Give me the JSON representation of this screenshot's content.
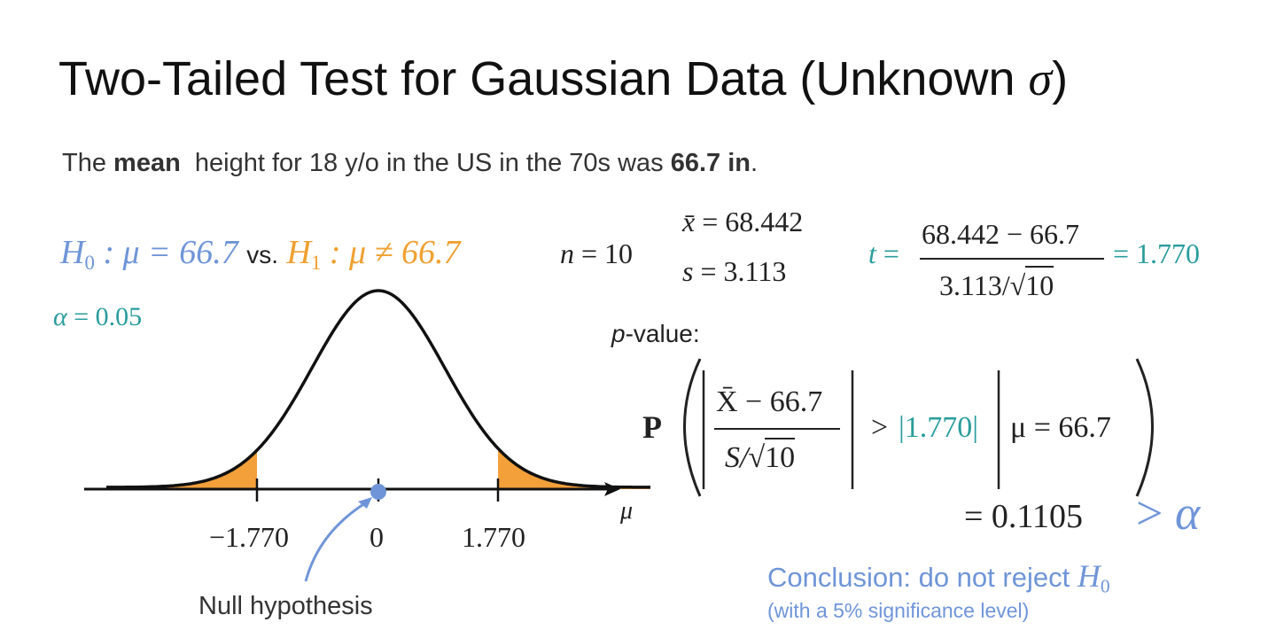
{
  "title": [
    "Two-Tailed Test for Gaussian Data (Unknown ",
    "σ",
    ")"
  ],
  "intro": [
    "The ",
    "mean",
    "  height for 18 y/o in the US in the 70s was ",
    "66.7 in",
    "."
  ],
  "hypotheses": {
    "h0": {
      "symbol": "H",
      "sub": "0",
      "rest": " : μ = 66.7"
    },
    "vs": "vs.",
    "h1": {
      "symbol": "H",
      "sub": "1",
      "rest": " : μ ≠ 66.7"
    }
  },
  "n": {
    "var": "n",
    "rest": " = 10"
  },
  "alpha": {
    "var": "α",
    "rest": " = 0.05"
  },
  "xbar": {
    "var": "x̄",
    "rest": " = 68.442"
  },
  "s": {
    "var": "s",
    "rest": " = 3.113"
  },
  "t": {
    "var": "t",
    "eq": " =",
    "numerator": "68.442 − 66.7",
    "denominator": "3.113/√",
    "sqrt": "10",
    "result": "= 1.770"
  },
  "pvalue": {
    "label_var": "p",
    "label_rest": "-value:",
    "P": "P",
    "numerator": "X̄ − 66.7",
    "denominator": "S/√",
    "sqrt": "10",
    "gt": ">",
    "tval": "|1.770|",
    "condition": "μ = 66.7",
    "result": "= 0.1105",
    "compare": [
      "> ",
      "α"
    ]
  },
  "plot": {
    "ticks": [
      "−1.770",
      "0",
      "1.770"
    ],
    "axis_label": "μ",
    "annotation": "Null hypothesis"
  },
  "conclusion": {
    "text": "Conclusion: do not reject ",
    "symbol": "H",
    "sub": "0",
    "note": "(with a 5% significance level)"
  }
}
